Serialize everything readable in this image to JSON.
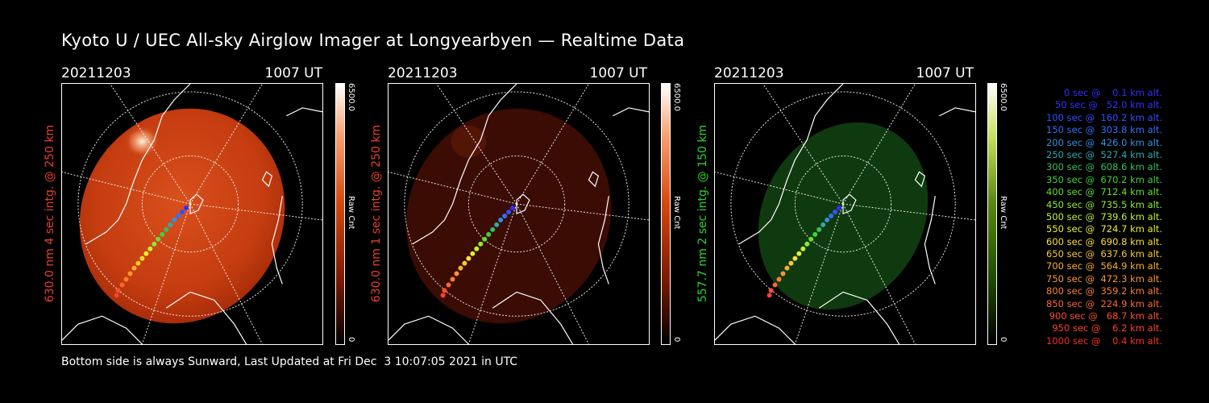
{
  "title": "Kyoto U / UEC All-sky Airglow Imager at Longyearbyen — Realtime Data",
  "panels": [
    {
      "date": "20211203",
      "time": "1007 UT",
      "ylabel": "630.0 nm 4 sec intg. @ 250 km",
      "ylabel_color": "#e8402a",
      "cbar_max": "6500.0",
      "cbar_min": "0",
      "cbar_unit": "Raw Cnt",
      "palette": "red"
    },
    {
      "date": "20211203",
      "time": "1007 UT",
      "ylabel": "630.0 nm 1 sec intg. @ 250 km",
      "ylabel_color": "#e8402a",
      "cbar_max": "6500.0",
      "cbar_min": "0",
      "cbar_unit": "Raw Cnt",
      "palette": "red"
    },
    {
      "date": "20211203",
      "time": "1007 UT",
      "ylabel": "557.7 nm 2 sec intg. @ 150 km",
      "ylabel_color": "#2bd62b",
      "cbar_max": "6500.0",
      "cbar_min": "0",
      "cbar_unit": "Raw Cnt",
      "palette": "green"
    }
  ],
  "footer": "Bottom side is always Sunward, Last Updated at Fri Dec  3 10:07:05 2021 in UTC",
  "legend": [
    {
      "text": "   0 sec @    0.1 km alt.",
      "color": "#3030ff"
    },
    {
      "text": "  50 sec @   52.0 km alt.",
      "color": "#3030ff"
    },
    {
      "text": " 100 sec @  160.2 km alt.",
      "color": "#3050ff"
    },
    {
      "text": " 150 sec @  303.8 km alt.",
      "color": "#3070ff"
    },
    {
      "text": " 200 sec @  426.0 km alt.",
      "color": "#3090e0"
    },
    {
      "text": " 250 sec @  527.4 km alt.",
      "color": "#30a8b0"
    },
    {
      "text": " 300 sec @  608.6 km alt.",
      "color": "#30c060"
    },
    {
      "text": " 350 sec @  670.2 km alt.",
      "color": "#40d040"
    },
    {
      "text": " 400 sec @  712.4 km alt.",
      "color": "#60e030"
    },
    {
      "text": " 450 sec @  735.5 km alt.",
      "color": "#90e830"
    },
    {
      "text": " 500 sec @  739.6 km alt.",
      "color": "#c0f030"
    },
    {
      "text": " 550 sec @  724.7 km alt.",
      "color": "#e8f030"
    },
    {
      "text": " 600 sec @  690.8 km alt.",
      "color": "#f8e030"
    },
    {
      "text": " 650 sec @  637.6 km alt.",
      "color": "#f8c830"
    },
    {
      "text": " 700 sec @  564.9 km alt.",
      "color": "#f8b030"
    },
    {
      "text": " 750 sec @  472.3 km alt.",
      "color": "#f89830"
    },
    {
      "text": " 800 sec @  359.2 km alt.",
      "color": "#f88030"
    },
    {
      "text": " 850 sec @  224.9 km alt.",
      "color": "#f86830"
    },
    {
      "text": " 900 sec @   68.7 km alt.",
      "color": "#f85030"
    },
    {
      "text": " 950 sec @    6.2 km alt.",
      "color": "#f84030"
    },
    {
      "text": "1000 sec @    0.4 km alt.",
      "color": "#f83020"
    }
  ]
}
